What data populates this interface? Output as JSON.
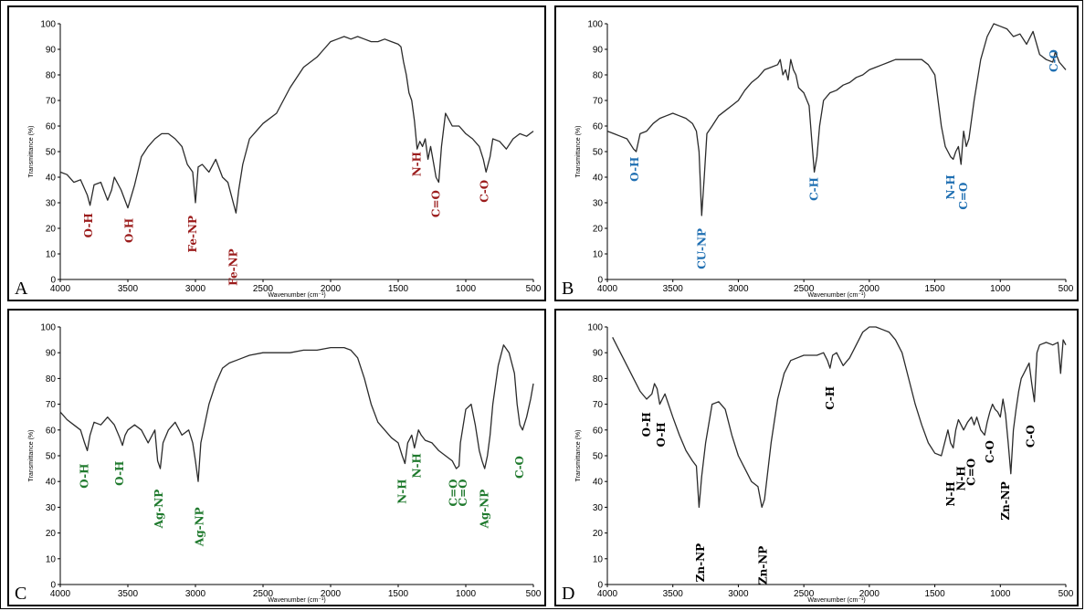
{
  "chart_data": [
    {
      "panel": "A",
      "type": "line",
      "xlabel": "Wavenumber (cm⁻¹)",
      "ylabel": "Transmittance (%)",
      "xlim": [
        4000,
        500
      ],
      "ylim": [
        0,
        100
      ],
      "x_ticks": [
        4000,
        3500,
        3000,
        2500,
        2000,
        1500,
        1000,
        500
      ],
      "y_ticks": [
        0,
        10,
        20,
        30,
        40,
        50,
        60,
        70,
        80,
        90,
        100
      ],
      "color": "#9b1c1c",
      "series": [
        {
          "x": [
            4000,
            3950,
            3900,
            3850,
            3800,
            3780,
            3750,
            3700,
            3650,
            3620,
            3600,
            3550,
            3500,
            3450,
            3400,
            3350,
            3300,
            3250,
            3200,
            3150,
            3100,
            3060,
            3020,
            3000,
            2980,
            2950,
            2900,
            2850,
            2800,
            2760,
            2720,
            2700,
            2680,
            2650,
            2600,
            2550,
            2500,
            2400,
            2300,
            2200,
            2100,
            2050,
            2000,
            1950,
            1900,
            1850,
            1800,
            1750,
            1700,
            1650,
            1600,
            1550,
            1500,
            1480,
            1460,
            1440,
            1420,
            1400,
            1380,
            1360,
            1340,
            1320,
            1300,
            1280,
            1260,
            1240,
            1220,
            1200,
            1180,
            1150,
            1100,
            1050,
            1000,
            950,
            900,
            870,
            850,
            820,
            800,
            750,
            700,
            650,
            600,
            550,
            500
          ],
          "y": [
            42,
            41,
            38,
            39,
            33,
            29,
            37,
            38,
            31,
            35,
            40,
            35,
            28,
            37,
            48,
            52,
            55,
            57,
            57,
            55,
            52,
            45,
            42,
            30,
            44,
            45,
            42,
            47,
            40,
            38,
            30,
            26,
            35,
            45,
            55,
            58,
            61,
            65,
            75,
            83,
            87,
            90,
            93,
            94,
            95,
            94,
            95,
            94,
            93,
            93,
            94,
            93,
            92,
            91,
            85,
            80,
            73,
            70,
            62,
            51,
            54,
            52,
            55,
            47,
            52,
            46,
            40,
            38,
            52,
            65,
            60,
            60,
            57,
            55,
            52,
            47,
            42,
            48,
            55,
            54,
            51,
            55,
            57,
            56,
            58
          ]
        }
      ],
      "annotations": [
        {
          "text": "O-H",
          "x": 3790,
          "y": 26
        },
        {
          "text": "O-H",
          "x": 3490,
          "y": 24
        },
        {
          "text": "Fe-NP",
          "x": 3020,
          "y": 25
        },
        {
          "text": "Fe-NP",
          "x": 2720,
          "y": 12
        },
        {
          "text": "N-H",
          "x": 1360,
          "y": 50
        },
        {
          "text": "C=O",
          "x": 1220,
          "y": 35
        },
        {
          "text": "C-O",
          "x": 860,
          "y": 39
        }
      ],
      "panel_label": "A"
    },
    {
      "panel": "B",
      "type": "line",
      "xlabel": "Wavenumber (cm⁻¹)",
      "ylabel": "Transmittance (%)",
      "xlim": [
        4000,
        500
      ],
      "ylim": [
        0,
        100
      ],
      "x_ticks": [
        4000,
        3500,
        3000,
        2500,
        2000,
        1500,
        1000,
        500
      ],
      "y_ticks": [
        0,
        10,
        20,
        30,
        40,
        50,
        60,
        70,
        80,
        90,
        100
      ],
      "color": "#1f6fb2",
      "series": [
        {
          "x": [
            4000,
            3950,
            3900,
            3850,
            3800,
            3780,
            3750,
            3700,
            3650,
            3600,
            3550,
            3500,
            3450,
            3400,
            3350,
            3320,
            3300,
            3280,
            3260,
            3240,
            3200,
            3150,
            3100,
            3050,
            3000,
            2950,
            2900,
            2850,
            2800,
            2750,
            2700,
            2680,
            2660,
            2640,
            2620,
            2600,
            2580,
            2560,
            2540,
            2500,
            2460,
            2440,
            2420,
            2400,
            2380,
            2350,
            2300,
            2250,
            2200,
            2150,
            2100,
            2050,
            2000,
            1950,
            1900,
            1850,
            1800,
            1750,
            1700,
            1650,
            1600,
            1550,
            1500,
            1450,
            1420,
            1400,
            1380,
            1360,
            1340,
            1320,
            1300,
            1290,
            1280,
            1260,
            1240,
            1200,
            1150,
            1100,
            1050,
            1000,
            950,
            900,
            850,
            800,
            750,
            700,
            650,
            600,
            580,
            550,
            500
          ],
          "y": [
            58,
            57,
            56,
            55,
            51,
            50,
            57,
            58,
            61,
            63,
            64,
            65,
            64,
            63,
            61,
            58,
            50,
            25,
            40,
            57,
            60,
            64,
            66,
            68,
            70,
            74,
            77,
            79,
            82,
            83,
            84,
            86,
            80,
            82,
            78,
            86,
            82,
            80,
            75,
            73,
            68,
            55,
            42,
            48,
            60,
            70,
            73,
            74,
            76,
            77,
            79,
            80,
            82,
            83,
            84,
            85,
            86,
            86,
            86,
            86,
            86,
            84,
            80,
            60,
            52,
            50,
            48,
            47,
            50,
            52,
            45,
            52,
            58,
            52,
            55,
            70,
            86,
            95,
            100,
            99,
            98,
            95,
            96,
            92,
            97,
            88,
            86,
            85,
            89,
            85,
            82
          ]
        }
      ],
      "annotations": [
        {
          "text": "O-H",
          "x": 3790,
          "y": 48
        },
        {
          "text": "CU-NP",
          "x": 3280,
          "y": 20
        },
        {
          "text": "C-H",
          "x": 2420,
          "y": 40
        },
        {
          "text": "N-H",
          "x": 1380,
          "y": 41
        },
        {
          "text": "C=O",
          "x": 1280,
          "y": 38
        },
        {
          "text": "C-O",
          "x": 590,
          "y": 90
        }
      ],
      "panel_label": "B"
    },
    {
      "panel": "C",
      "type": "line",
      "xlabel": "Wavenumber (cm⁻¹)",
      "ylabel": "Transmittance (%)",
      "xlim": [
        4000,
        500
      ],
      "ylim": [
        0,
        100
      ],
      "x_ticks": [
        4000,
        3500,
        3000,
        2500,
        2000,
        1500,
        1000,
        500
      ],
      "y_ticks": [
        0,
        10,
        20,
        30,
        40,
        50,
        60,
        70,
        80,
        90,
        100
      ],
      "color": "#207a2e",
      "series": [
        {
          "x": [
            4000,
            3950,
            3900,
            3850,
            3820,
            3800,
            3780,
            3750,
            3700,
            3650,
            3600,
            3560,
            3540,
            3520,
            3500,
            3450,
            3400,
            3350,
            3300,
            3280,
            3260,
            3240,
            3200,
            3150,
            3100,
            3050,
            3020,
            3000,
            2980,
            2960,
            2900,
            2850,
            2800,
            2750,
            2700,
            2650,
            2600,
            2500,
            2400,
            2300,
            2200,
            2100,
            2000,
            1900,
            1850,
            1800,
            1750,
            1700,
            1650,
            1600,
            1550,
            1500,
            1470,
            1450,
            1430,
            1400,
            1380,
            1350,
            1330,
            1300,
            1250,
            1200,
            1150,
            1100,
            1070,
            1050,
            1040,
            1000,
            960,
            930,
            900,
            880,
            860,
            840,
            820,
            800,
            760,
            720,
            680,
            640,
            620,
            600,
            580,
            550,
            520,
            500
          ],
          "y": [
            67,
            64,
            62,
            60,
            55,
            52,
            58,
            63,
            62,
            65,
            62,
            57,
            54,
            58,
            60,
            62,
            60,
            55,
            60,
            48,
            45,
            55,
            60,
            63,
            58,
            60,
            55,
            48,
            40,
            55,
            70,
            78,
            84,
            86,
            87,
            88,
            89,
            90,
            90,
            90,
            91,
            91,
            92,
            92,
            91,
            88,
            80,
            70,
            63,
            60,
            57,
            55,
            50,
            47,
            55,
            58,
            53,
            60,
            58,
            56,
            55,
            52,
            50,
            48,
            45,
            46,
            55,
            68,
            70,
            62,
            52,
            48,
            45,
            50,
            58,
            70,
            85,
            93,
            90,
            82,
            70,
            62,
            60,
            65,
            72,
            78
          ]
        }
      ],
      "annotations": [
        {
          "text": "O-H",
          "x": 3820,
          "y": 47
        },
        {
          "text": "O-H",
          "x": 3560,
          "y": 48
        },
        {
          "text": "Ag-NP",
          "x": 3270,
          "y": 37
        },
        {
          "text": "Ag-NP",
          "x": 2970,
          "y": 30
        },
        {
          "text": "N-H",
          "x": 1470,
          "y": 41
        },
        {
          "text": "N-H",
          "x": 1360,
          "y": 51
        },
        {
          "text": "C=O",
          "x": 1090,
          "y": 41
        },
        {
          "text": "C=O",
          "x": 1020,
          "y": 41
        },
        {
          "text": "Ag-NP",
          "x": 860,
          "y": 37
        },
        {
          "text": "C-O",
          "x": 600,
          "y": 50
        }
      ],
      "panel_label": "C"
    },
    {
      "panel": "D",
      "type": "line",
      "xlabel": "Wavenumber (cm⁻¹)",
      "ylabel": "Transmittance (%)",
      "xlim": [
        4000,
        500
      ],
      "ylim": [
        0,
        100
      ],
      "x_ticks": [
        4000,
        3500,
        3000,
        2500,
        2000,
        1500,
        1000,
        500
      ],
      "y_ticks": [
        0,
        10,
        20,
        30,
        40,
        50,
        60,
        70,
        80,
        90,
        100
      ],
      "color": "#000000",
      "series": [
        {
          "x": [
            3960,
            3900,
            3850,
            3800,
            3750,
            3700,
            3660,
            3640,
            3620,
            3600,
            3580,
            3560,
            3500,
            3450,
            3400,
            3350,
            3320,
            3300,
            3280,
            3250,
            3200,
            3150,
            3100,
            3050,
            3000,
            2950,
            2900,
            2850,
            2820,
            2800,
            2750,
            2700,
            2650,
            2600,
            2550,
            2500,
            2400,
            2350,
            2320,
            2300,
            2280,
            2250,
            2200,
            2150,
            2100,
            2050,
            2000,
            1950,
            1900,
            1850,
            1800,
            1750,
            1700,
            1650,
            1600,
            1550,
            1500,
            1450,
            1400,
            1380,
            1360,
            1340,
            1320,
            1300,
            1280,
            1250,
            1220,
            1200,
            1180,
            1150,
            1120,
            1100,
            1080,
            1060,
            1040,
            1020,
            1000,
            980,
            960,
            940,
            920,
            900,
            880,
            860,
            840,
            820,
            800,
            780,
            760,
            740,
            720,
            700,
            650,
            600,
            560,
            540,
            520,
            500
          ],
          "y": [
            96,
            90,
            85,
            80,
            75,
            72,
            74,
            78,
            76,
            70,
            72,
            74,
            65,
            58,
            52,
            48,
            46,
            30,
            42,
            55,
            70,
            71,
            68,
            58,
            50,
            45,
            40,
            38,
            30,
            33,
            55,
            72,
            82,
            87,
            88,
            89,
            89,
            90,
            87,
            84,
            89,
            90,
            85,
            88,
            93,
            98,
            100,
            100,
            99,
            98,
            95,
            90,
            80,
            70,
            62,
            55,
            51,
            50,
            60,
            55,
            53,
            60,
            64,
            62,
            60,
            63,
            65,
            62,
            65,
            60,
            58,
            63,
            67,
            70,
            68,
            67,
            65,
            72,
            66,
            55,
            43,
            60,
            68,
            75,
            80,
            82,
            84,
            86,
            78,
            71,
            90,
            93,
            94,
            93,
            94,
            82,
            95,
            93
          ]
        }
      ],
      "annotations": [
        {
          "text": "O-H",
          "x": 3700,
          "y": 67
        },
        {
          "text": "O-H",
          "x": 3590,
          "y": 63
        },
        {
          "text": "Zn-NP",
          "x": 3290,
          "y": 16
        },
        {
          "text": "Zn-NP",
          "x": 2810,
          "y": 15
        },
        {
          "text": "C-H",
          "x": 2300,
          "y": 77
        },
        {
          "text": "N-H",
          "x": 1380,
          "y": 40
        },
        {
          "text": "N-H",
          "x": 1300,
          "y": 46
        },
        {
          "text": "C=O",
          "x": 1220,
          "y": 49
        },
        {
          "text": "C-O",
          "x": 1080,
          "y": 56
        },
        {
          "text": "Zn-NP",
          "x": 960,
          "y": 40
        },
        {
          "text": "C-O",
          "x": 770,
          "y": 62
        }
      ],
      "panel_label": "D"
    }
  ]
}
